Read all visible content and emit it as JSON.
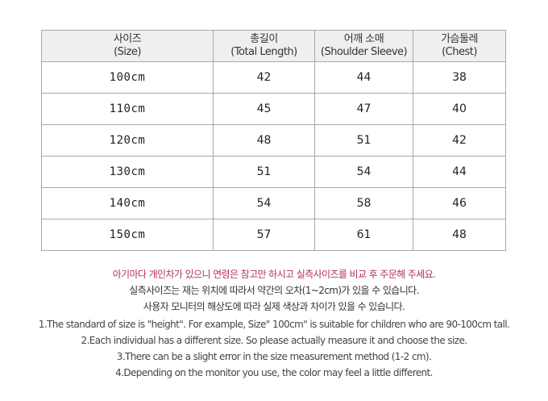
{
  "table": {
    "headers": [
      {
        "ko": "사이즈",
        "en": "(Size)"
      },
      {
        "ko": "총길이",
        "en": "(Total Length)"
      },
      {
        "ko": "어깨 소매",
        "en": "(Shoulder Sleeve)"
      },
      {
        "ko": "가슴둘레",
        "en": "(Chest)"
      }
    ],
    "rows": [
      [
        "100cm",
        "42",
        "44",
        "38"
      ],
      [
        "110cm",
        "45",
        "47",
        "40"
      ],
      [
        "120cm",
        "48",
        "51",
        "42"
      ],
      [
        "130cm",
        "51",
        "54",
        "44"
      ],
      [
        "140cm",
        "54",
        "58",
        "46"
      ],
      [
        "150cm",
        "57",
        "61",
        "48"
      ]
    ]
  },
  "notes_ko": [
    "아기마다 개인차가 있으니 연령은 참고만 하시고 실측사이즈를 비교 후 주문해 주세요.",
    "실측사이즈는 재는 위치에 따라서 약간의  오차(1~2cm)가 있을 수 있습니다.",
    "사용자 모니터의 해상도에 따라 실제 색상과 차이가 있을 수 있습니다."
  ],
  "notes_en": [
    "1.The standard of size is \"height\". For example,  Size\" 100cm\" is suitable for children who are 90-100cm tall.",
    "2.Each individual has a different size. So please actually measure it and choose the size.",
    "3.There can be a slight error in the size measurement method (1-2 cm).",
    "4.Depending on the monitor you use, the color may feel a little different."
  ],
  "colors": {
    "highlight": "#b3305a",
    "header_bg": "#efefef",
    "border": "#a8a8a8"
  }
}
